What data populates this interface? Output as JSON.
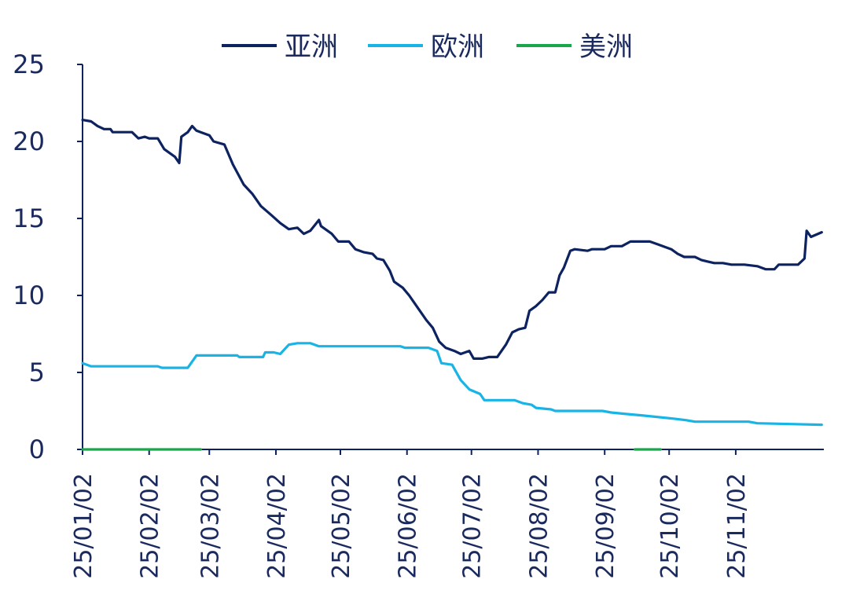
{
  "chart_data": {
    "type": "line",
    "title": "",
    "xlabel": "",
    "ylabel": "",
    "ylim": [
      0,
      25
    ],
    "yticks": [
      "0",
      "5",
      "10",
      "15",
      "20",
      "25"
    ],
    "xticks": [
      "25/01/02",
      "25/02/02",
      "25/03/02",
      "25/04/02",
      "25/05/02",
      "25/06/02",
      "25/07/02",
      "25/08/02",
      "25/09/02",
      "25/10/02",
      "25/11/02"
    ],
    "legend_position": "top",
    "grid": false,
    "series": [
      {
        "name": "亚洲",
        "color": "#0d2260",
        "points": [
          [
            "2025-01-02",
            21.4
          ],
          [
            "2025-01-06",
            21.3
          ],
          [
            "2025-01-09",
            21.0
          ],
          [
            "2025-01-12",
            20.8
          ],
          [
            "2025-01-15",
            20.8
          ],
          [
            "2025-01-16",
            20.6
          ],
          [
            "2025-01-25",
            20.6
          ],
          [
            "2025-01-28",
            20.2
          ],
          [
            "2025-01-31",
            20.3
          ],
          [
            "2025-02-02",
            20.2
          ],
          [
            "2025-02-06",
            20.2
          ],
          [
            "2025-02-09",
            19.5
          ],
          [
            "2025-02-14",
            19.0
          ],
          [
            "2025-02-16",
            18.6
          ],
          [
            "2025-02-17",
            20.3
          ],
          [
            "2025-02-20",
            20.6
          ],
          [
            "2025-02-22",
            21.0
          ],
          [
            "2025-02-24",
            20.7
          ],
          [
            "2025-03-02",
            20.4
          ],
          [
            "2025-03-04",
            20.0
          ],
          [
            "2025-03-09",
            19.8
          ],
          [
            "2025-03-13",
            18.5
          ],
          [
            "2025-03-18",
            17.2
          ],
          [
            "2025-03-22",
            16.6
          ],
          [
            "2025-03-26",
            15.8
          ],
          [
            "2025-03-31",
            15.2
          ],
          [
            "2025-04-04",
            14.7
          ],
          [
            "2025-04-08",
            14.3
          ],
          [
            "2025-04-12",
            14.4
          ],
          [
            "2025-04-15",
            14.0
          ],
          [
            "2025-04-18",
            14.2
          ],
          [
            "2025-04-22",
            14.9
          ],
          [
            "2025-04-23",
            14.5
          ],
          [
            "2025-04-28",
            14.0
          ],
          [
            "2025-05-01",
            13.5
          ],
          [
            "2025-05-06",
            13.5
          ],
          [
            "2025-05-09",
            13.0
          ],
          [
            "2025-05-13",
            12.8
          ],
          [
            "2025-05-17",
            12.7
          ],
          [
            "2025-05-19",
            12.4
          ],
          [
            "2025-05-22",
            12.3
          ],
          [
            "2025-05-25",
            11.6
          ],
          [
            "2025-05-27",
            10.9
          ],
          [
            "2025-05-31",
            10.5
          ],
          [
            "2025-06-03",
            10.0
          ],
          [
            "2025-06-07",
            9.2
          ],
          [
            "2025-06-11",
            8.4
          ],
          [
            "2025-06-14",
            7.9
          ],
          [
            "2025-06-17",
            7.0
          ],
          [
            "2025-06-20",
            6.6
          ],
          [
            "2025-06-24",
            6.4
          ],
          [
            "2025-06-27",
            6.2
          ],
          [
            "2025-07-01",
            6.4
          ],
          [
            "2025-07-03",
            5.9
          ],
          [
            "2025-07-07",
            5.9
          ],
          [
            "2025-07-10",
            6.0
          ],
          [
            "2025-07-14",
            6.0
          ],
          [
            "2025-07-18",
            6.8
          ],
          [
            "2025-07-21",
            7.6
          ],
          [
            "2025-07-24",
            7.8
          ],
          [
            "2025-07-27",
            7.9
          ],
          [
            "2025-07-29",
            9.0
          ],
          [
            "2025-08-01",
            9.3
          ],
          [
            "2025-08-04",
            9.7
          ],
          [
            "2025-08-07",
            10.2
          ],
          [
            "2025-08-10",
            10.2
          ],
          [
            "2025-08-12",
            11.3
          ],
          [
            "2025-08-14",
            11.8
          ],
          [
            "2025-08-17",
            12.9
          ],
          [
            "2025-08-19",
            13.0
          ],
          [
            "2025-08-25",
            12.9
          ],
          [
            "2025-08-27",
            13.0
          ],
          [
            "2025-09-02",
            13.0
          ],
          [
            "2025-09-05",
            13.2
          ],
          [
            "2025-09-10",
            13.2
          ],
          [
            "2025-09-14",
            13.5
          ],
          [
            "2025-09-23",
            13.5
          ],
          [
            "2025-09-27",
            13.3
          ],
          [
            "2025-10-03",
            13.0
          ],
          [
            "2025-10-06",
            12.7
          ],
          [
            "2025-10-09",
            12.5
          ],
          [
            "2025-10-14",
            12.5
          ],
          [
            "2025-10-17",
            12.3
          ],
          [
            "2025-10-20",
            12.2
          ],
          [
            "2025-10-23",
            12.1
          ],
          [
            "2025-10-27",
            12.1
          ],
          [
            "2025-10-31",
            12.0
          ],
          [
            "2025-11-06",
            12.0
          ],
          [
            "2025-11-12",
            11.9
          ],
          [
            "2025-11-16",
            11.7
          ],
          [
            "2025-11-20",
            11.7
          ],
          [
            "2025-11-22",
            12.0
          ],
          [
            "2025-12-01",
            12.0
          ],
          [
            "2025-12-04",
            12.4
          ],
          [
            "2025-12-05",
            14.2
          ],
          [
            "2025-12-07",
            13.8
          ],
          [
            "2025-12-12",
            14.1
          ]
        ]
      },
      {
        "name": "欧洲",
        "color": "#18b4e6",
        "points": [
          [
            "2025-01-02",
            5.6
          ],
          [
            "2025-01-06",
            5.4
          ],
          [
            "2025-01-31",
            5.4
          ],
          [
            "2025-02-06",
            5.4
          ],
          [
            "2025-02-08",
            5.3
          ],
          [
            "2025-02-15",
            5.3
          ],
          [
            "2025-02-20",
            5.3
          ],
          [
            "2025-02-24",
            6.1
          ],
          [
            "2025-03-15",
            6.1
          ],
          [
            "2025-03-16",
            6.0
          ],
          [
            "2025-03-27",
            6.0
          ],
          [
            "2025-03-28",
            6.3
          ],
          [
            "2025-04-01",
            6.3
          ],
          [
            "2025-04-04",
            6.2
          ],
          [
            "2025-04-08",
            6.8
          ],
          [
            "2025-04-12",
            6.9
          ],
          [
            "2025-04-18",
            6.9
          ],
          [
            "2025-04-22",
            6.7
          ],
          [
            "2025-05-30",
            6.7
          ],
          [
            "2025-06-01",
            6.6
          ],
          [
            "2025-06-12",
            6.6
          ],
          [
            "2025-06-16",
            6.4
          ],
          [
            "2025-06-18",
            5.6
          ],
          [
            "2025-06-23",
            5.5
          ],
          [
            "2025-06-27",
            4.5
          ],
          [
            "2025-07-01",
            3.9
          ],
          [
            "2025-07-06",
            3.6
          ],
          [
            "2025-07-08",
            3.2
          ],
          [
            "2025-07-22",
            3.2
          ],
          [
            "2025-07-26",
            3.0
          ],
          [
            "2025-07-30",
            2.9
          ],
          [
            "2025-08-01",
            2.7
          ],
          [
            "2025-08-08",
            2.6
          ],
          [
            "2025-08-10",
            2.5
          ],
          [
            "2025-08-20",
            2.5
          ],
          [
            "2025-09-01",
            2.5
          ],
          [
            "2025-09-05",
            2.4
          ],
          [
            "2025-09-12",
            2.3
          ],
          [
            "2025-09-20",
            2.2
          ],
          [
            "2025-10-04",
            2.0
          ],
          [
            "2025-10-10",
            1.9
          ],
          [
            "2025-10-14",
            1.8
          ],
          [
            "2025-11-08",
            1.8
          ],
          [
            "2025-11-12",
            1.7
          ],
          [
            "2025-12-12",
            1.6
          ]
        ]
      },
      {
        "name": "美洲",
        "color": "#1aa64a",
        "points": [
          [
            "2025-01-02",
            0.0
          ],
          [
            "2025-02-26",
            0.0
          ],
          [
            "2025-09-16",
            0.0
          ],
          [
            "2025-09-28",
            0.0
          ]
        ],
        "segments": [
          [
            0,
            1
          ],
          [
            2,
            3
          ]
        ]
      }
    ]
  }
}
